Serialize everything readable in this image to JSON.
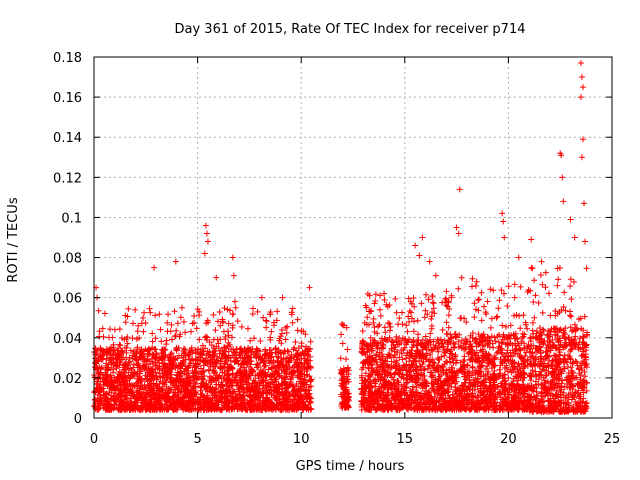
{
  "chart_data": {
    "type": "scatter",
    "title": "Day 361 of 2015, Rate Of TEC Index for receiver p714",
    "xlabel": "GPS time / hours",
    "ylabel": "ROTI / TECUs",
    "xlim": [
      0,
      25
    ],
    "ylim": [
      0,
      0.18
    ],
    "xticks": [
      0,
      5,
      10,
      15,
      20,
      25
    ],
    "yticks": [
      0,
      0.02,
      0.04,
      0.06,
      0.08,
      0.1,
      0.12,
      0.14,
      0.16,
      0.18
    ],
    "xtick_labels": [
      "0",
      "5",
      "10",
      "15",
      "20",
      "25"
    ],
    "ytick_labels": [
      "0",
      "0.02",
      "0.04",
      "0.06",
      "0.08",
      "0.1",
      "0.12",
      "0.14",
      "0.16",
      "0.18"
    ],
    "grid": true,
    "marker": "+",
    "color": "#ff0000",
    "data_gaps_hours": [
      [
        10.5,
        11.9
      ],
      [
        12.3,
        12.9
      ]
    ],
    "notable_points": [
      {
        "x": 0.1,
        "y": 0.065
      },
      {
        "x": 0.15,
        "y": 0.06
      },
      {
        "x": 2.9,
        "y": 0.075
      },
      {
        "x": 3.95,
        "y": 0.078
      },
      {
        "x": 5.4,
        "y": 0.096
      },
      {
        "x": 5.45,
        "y": 0.092
      },
      {
        "x": 5.5,
        "y": 0.088
      },
      {
        "x": 5.35,
        "y": 0.082
      },
      {
        "x": 5.9,
        "y": 0.07
      },
      {
        "x": 6.7,
        "y": 0.08
      },
      {
        "x": 6.75,
        "y": 0.071
      },
      {
        "x": 6.8,
        "y": 0.058
      },
      {
        "x": 8.1,
        "y": 0.06
      },
      {
        "x": 9.1,
        "y": 0.06
      },
      {
        "x": 10.4,
        "y": 0.065
      },
      {
        "x": 13.3,
        "y": 0.061
      },
      {
        "x": 14.0,
        "y": 0.062
      },
      {
        "x": 15.5,
        "y": 0.086
      },
      {
        "x": 15.7,
        "y": 0.081
      },
      {
        "x": 15.85,
        "y": 0.09
      },
      {
        "x": 16.2,
        "y": 0.078
      },
      {
        "x": 16.5,
        "y": 0.071
      },
      {
        "x": 17.5,
        "y": 0.095
      },
      {
        "x": 17.6,
        "y": 0.092
      },
      {
        "x": 17.65,
        "y": 0.114
      },
      {
        "x": 19.7,
        "y": 0.102
      },
      {
        "x": 19.75,
        "y": 0.098
      },
      {
        "x": 19.8,
        "y": 0.09
      },
      {
        "x": 20.5,
        "y": 0.08
      },
      {
        "x": 21.1,
        "y": 0.089
      },
      {
        "x": 21.6,
        "y": 0.078
      },
      {
        "x": 22.5,
        "y": 0.132
      },
      {
        "x": 22.55,
        "y": 0.131
      },
      {
        "x": 22.6,
        "y": 0.12
      },
      {
        "x": 22.65,
        "y": 0.108
      },
      {
        "x": 23.0,
        "y": 0.099
      },
      {
        "x": 23.2,
        "y": 0.09
      },
      {
        "x": 23.5,
        "y": 0.177
      },
      {
        "x": 23.55,
        "y": 0.17
      },
      {
        "x": 23.6,
        "y": 0.165
      },
      {
        "x": 23.5,
        "y": 0.16
      },
      {
        "x": 23.6,
        "y": 0.139
      },
      {
        "x": 23.55,
        "y": 0.13
      },
      {
        "x": 23.65,
        "y": 0.107
      },
      {
        "x": 23.7,
        "y": 0.088
      }
    ],
    "bulk_activity": [
      {
        "x_start": 0.0,
        "x_end": 10.5,
        "y_min": 0.004,
        "y_typical_max": 0.035,
        "y_burst_max": 0.055
      },
      {
        "x_start": 11.9,
        "x_end": 12.3,
        "y_min": 0.005,
        "y_typical_max": 0.025,
        "y_burst_max": 0.047
      },
      {
        "x_start": 12.9,
        "x_end": 17.0,
        "y_min": 0.004,
        "y_typical_max": 0.04,
        "y_burst_max": 0.062
      },
      {
        "x_start": 17.0,
        "x_end": 21.0,
        "y_min": 0.004,
        "y_typical_max": 0.042,
        "y_burst_max": 0.07
      },
      {
        "x_start": 21.0,
        "x_end": 23.8,
        "y_min": 0.003,
        "y_typical_max": 0.045,
        "y_burst_max": 0.075
      }
    ]
  }
}
